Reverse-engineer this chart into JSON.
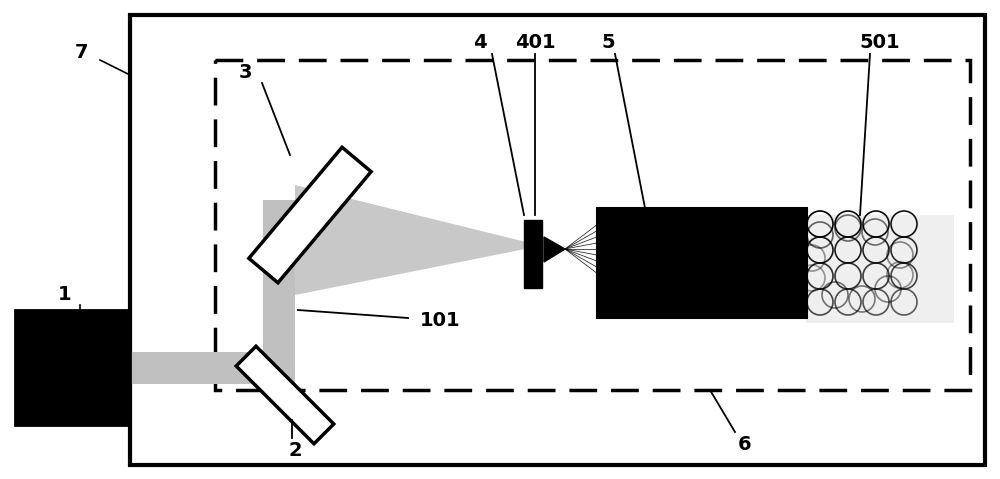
{
  "fig_width": 10.0,
  "fig_height": 4.79,
  "bg_color": "#ffffff",
  "black": "#000000",
  "gray_beam": "#c8c8c8",
  "gray_dark": "#a0a0a0"
}
